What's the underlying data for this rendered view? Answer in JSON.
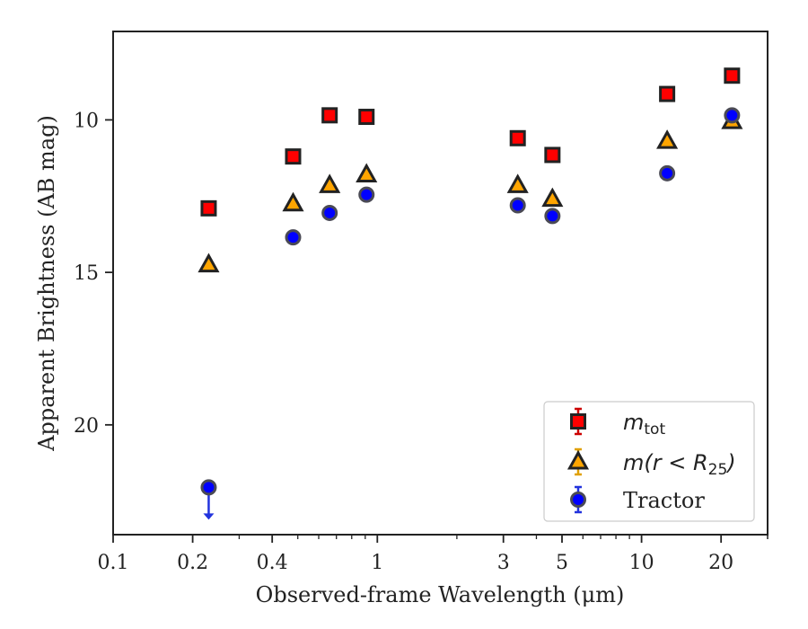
{
  "chart_data": {
    "type": "scatter",
    "title": "",
    "xlabel": "Observed-frame Wavelength (μm)",
    "ylabel": "Apparent Brightness (AB mag)",
    "x_scale": "log",
    "xlim": [
      0.1,
      30
    ],
    "ylim": [
      23.6,
      7.1
    ],
    "y_inverted": true,
    "x_ticks": [
      {
        "value": 0.1,
        "label": "0.1"
      },
      {
        "value": 0.2,
        "label": "0.2"
      },
      {
        "value": 0.4,
        "label": "0.4"
      },
      {
        "value": 1,
        "label": "1"
      },
      {
        "value": 3,
        "label": "3"
      },
      {
        "value": 5,
        "label": "5"
      },
      {
        "value": 10,
        "label": "10"
      },
      {
        "value": 20,
        "label": "20"
      }
    ],
    "y_ticks": [
      {
        "value": 10,
        "label": "10"
      },
      {
        "value": 15,
        "label": "15"
      },
      {
        "value": 20,
        "label": "20"
      }
    ],
    "grid": false,
    "legend_position": "bottom-right",
    "series": [
      {
        "name": "m_tot",
        "label_main": "m",
        "label_sub": "tot",
        "marker": "square",
        "color": "#ff0000",
        "error_color": "#cc0000",
        "x": [
          0.23,
          0.48,
          0.66,
          0.91,
          3.4,
          4.6,
          12.5,
          22.0
        ],
        "y": [
          12.9,
          11.2,
          9.85,
          9.9,
          10.6,
          11.15,
          9.15,
          8.55
        ]
      },
      {
        "name": "m(r < R_25)",
        "label_main": "m(r < R",
        "label_sub": "25",
        "label_end": ")",
        "marker": "triangle",
        "color": "#ffa500",
        "error_color": "#e0a000",
        "x": [
          0.23,
          0.48,
          0.66,
          0.91,
          3.4,
          4.6,
          12.5,
          22.0
        ],
        "y": [
          14.75,
          12.75,
          12.15,
          11.8,
          12.15,
          12.6,
          10.7,
          10.05
        ]
      },
      {
        "name": "Tractor",
        "label_main": "Tractor",
        "marker": "circle",
        "color": "#0000ff",
        "error_color": "#2233dd",
        "x": [
          0.23,
          0.48,
          0.66,
          0.91,
          3.4,
          4.6,
          12.5,
          22.0
        ],
        "y": [
          22.05,
          13.85,
          13.05,
          12.45,
          12.8,
          13.15,
          11.75,
          9.85
        ],
        "upper_limit": [
          true,
          false,
          false,
          false,
          false,
          false,
          false,
          false
        ]
      }
    ],
    "colors": {
      "edge": "#222222",
      "axes": "#222222"
    }
  }
}
